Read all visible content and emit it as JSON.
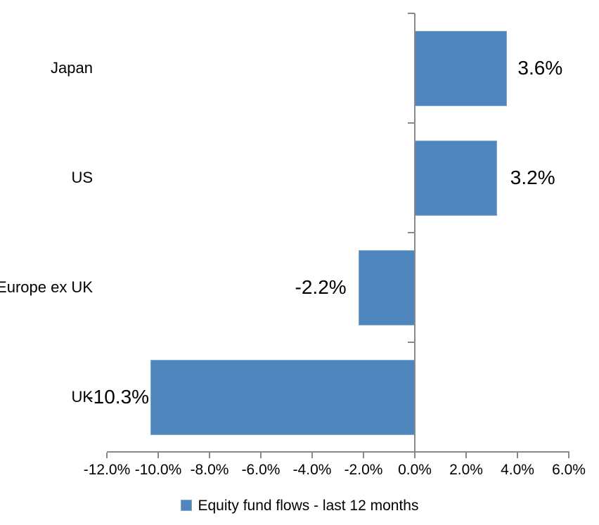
{
  "chart_data": {
    "type": "bar",
    "orientation": "horizontal",
    "title": "",
    "categories": [
      "Japan",
      "US",
      "Europe ex UK",
      "UK"
    ],
    "series": [
      {
        "name": "Equity fund flows - last 12 months",
        "values": [
          3.6,
          3.2,
          -2.2,
          -10.3
        ],
        "data_labels": [
          "3.6%",
          "3.2%",
          "-2.2%",
          "-10.3%"
        ]
      }
    ],
    "xlabel": "",
    "ylabel": "",
    "xlim": [
      -12,
      6
    ],
    "x_ticks": [
      -12,
      -10,
      -8,
      -6,
      -4,
      -2,
      0,
      2,
      4,
      6
    ],
    "x_tick_labels": [
      "-12.0%",
      "-10.0%",
      "-8.0%",
      "-6.0%",
      "-4.0%",
      "-2.0%",
      "0.0%",
      "2.0%",
      "4.0%",
      "6.0%"
    ],
    "grid": false,
    "legend": {
      "position": "bottom",
      "label": "Equity fund flows - last 12 months",
      "swatch_color": "#4E86BD"
    },
    "colors": {
      "bar_fill": "#4E86BD",
      "bar_border": "#7FA6CE",
      "axis_line": "#898989",
      "text": "#000000",
      "background": "#FFFFFF"
    }
  }
}
